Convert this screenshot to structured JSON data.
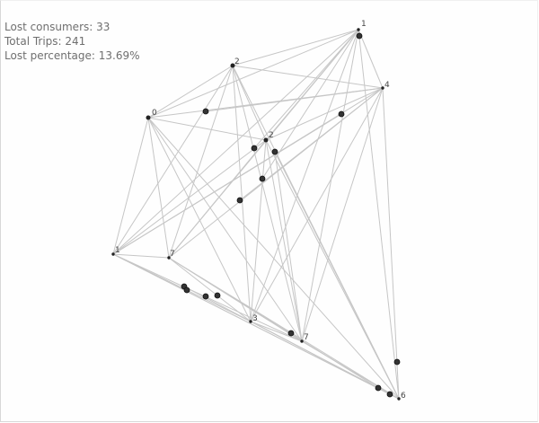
{
  "stats": {
    "lost_consumers": "Lost consumers: 33",
    "total_trips": "Total Trips: 241",
    "lost_percentage": "Lost percentage: 13.69%"
  },
  "colors": {
    "edge": "#c6c6c6",
    "node": "#333333",
    "text": "#6f6f6f",
    "background": "#ffffff"
  },
  "station_labels": [
    "1",
    "2",
    "4",
    "0",
    "2",
    "1",
    "7",
    "3",
    "7",
    "6"
  ]
}
